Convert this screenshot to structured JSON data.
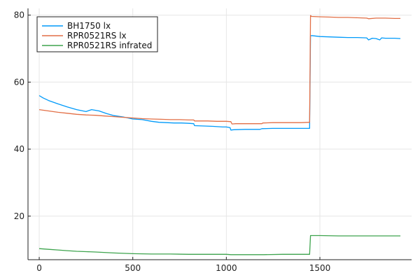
{
  "chart_data": {
    "type": "line",
    "xlim": [
      -60,
      1990
    ],
    "ylim": [
      7,
      82
    ],
    "xticks": [
      0,
      500,
      1000,
      1500
    ],
    "yticks": [
      20,
      40,
      60,
      80
    ],
    "grid": true,
    "legend_position": "top-left",
    "series": [
      {
        "name": "BH1750 lx",
        "color": "#009AFA",
        "x": [
          0,
          20,
          50,
          100,
          150,
          200,
          250,
          280,
          320,
          360,
          400,
          450,
          500,
          550,
          600,
          640,
          680,
          720,
          760,
          800,
          826,
          830,
          880,
          930,
          980,
          1000,
          1020,
          1024,
          1040,
          1100,
          1150,
          1180,
          1190,
          1250,
          1300,
          1350,
          1400,
          1445,
          1450,
          1455,
          1500,
          1550,
          1600,
          1650,
          1700,
          1750,
          1760,
          1780,
          1800,
          1820,
          1830,
          1850,
          1900,
          1930
        ],
        "values": [
          56,
          55.3,
          54.5,
          53.5,
          52.6,
          51.8,
          51.2,
          51.8,
          51.4,
          50.6,
          50.0,
          49.6,
          49.0,
          48.8,
          48.3,
          48.0,
          47.9,
          47.8,
          47.8,
          47.7,
          47.6,
          47.0,
          46.9,
          46.8,
          46.6,
          46.6,
          46.4,
          45.7,
          45.8,
          45.9,
          45.9,
          45.9,
          46.1,
          46.2,
          46.2,
          46.2,
          46.2,
          46.2,
          73.8,
          73.9,
          73.6,
          73.5,
          73.4,
          73.3,
          73.3,
          73.2,
          72.6,
          73.1,
          73.0,
          72.6,
          73.2,
          73.1,
          73.1,
          73.0
        ]
      },
      {
        "name": "RPR0521RS lx",
        "color": "#E26F46",
        "x": [
          0,
          50,
          100,
          150,
          200,
          250,
          300,
          350,
          400,
          450,
          500,
          550,
          600,
          650,
          700,
          750,
          800,
          826,
          830,
          900,
          950,
          1000,
          1024,
          1030,
          1050,
          1100,
          1150,
          1190,
          1195,
          1250,
          1300,
          1350,
          1400,
          1445,
          1450,
          1455,
          1500,
          1550,
          1600,
          1650,
          1700,
          1750,
          1760,
          1800,
          1850,
          1900,
          1930
        ],
        "values": [
          51.8,
          51.4,
          51.0,
          50.7,
          50.4,
          50.2,
          50.1,
          49.9,
          49.7,
          49.5,
          49.3,
          49.1,
          49.0,
          48.9,
          48.8,
          48.8,
          48.7,
          48.7,
          48.4,
          48.4,
          48.3,
          48.3,
          48.2,
          47.5,
          47.6,
          47.6,
          47.6,
          47.6,
          47.8,
          47.9,
          47.9,
          47.9,
          47.9,
          48.0,
          79.9,
          79.6,
          79.5,
          79.4,
          79.3,
          79.3,
          79.2,
          79.1,
          78.9,
          79.1,
          79.1,
          79.0,
          79.0
        ]
      },
      {
        "name": "RPR0521RS infrated",
        "color": "#3EA44E",
        "x": [
          0,
          50,
          100,
          150,
          200,
          250,
          300,
          400,
          500,
          600,
          700,
          800,
          900,
          1000,
          1024,
          1100,
          1200,
          1300,
          1400,
          1445,
          1450,
          1500,
          1600,
          1700,
          1800,
          1900,
          1930
        ],
        "values": [
          10.3,
          10.1,
          9.9,
          9.7,
          9.5,
          9.4,
          9.3,
          9.0,
          8.8,
          8.7,
          8.7,
          8.6,
          8.6,
          8.6,
          8.5,
          8.5,
          8.5,
          8.6,
          8.6,
          8.6,
          14.2,
          14.2,
          14.1,
          14.1,
          14.1,
          14.1,
          14.1
        ]
      }
    ]
  }
}
